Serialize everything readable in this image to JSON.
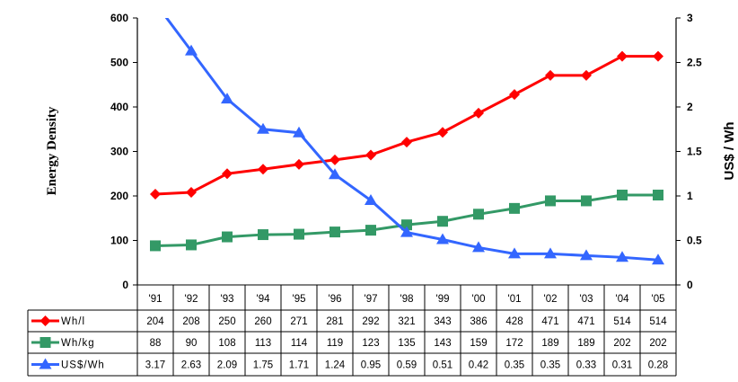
{
  "chart_data": {
    "type": "line",
    "title": "",
    "xlabel": "",
    "ylabel": "Energy Density",
    "y2label": "US$ / Wh",
    "ylim": [
      0,
      600
    ],
    "y2lim": [
      0,
      3
    ],
    "yticks": [
      0,
      100,
      200,
      300,
      400,
      500,
      600
    ],
    "y2ticks": [
      "0",
      "0.5",
      "1",
      "1.5",
      "2",
      "2.5",
      "3"
    ],
    "categories": [
      "'91",
      "'92",
      "'93",
      "'94",
      "'95",
      "'96",
      "'97",
      "'98",
      "'99",
      "'00",
      "'01",
      "'02",
      "'03",
      "'04",
      "'05"
    ],
    "grid": false,
    "legend": "data table below plot",
    "series": [
      {
        "name": "Wh/l",
        "axis": "left",
        "color": "#ff0000",
        "marker": "diamond",
        "values": [
          204,
          208,
          250,
          260,
          271,
          281,
          292,
          321,
          343,
          386,
          428,
          471,
          471,
          514,
          514
        ],
        "labels": [
          "204",
          "208",
          "250",
          "260",
          "271",
          "281",
          "292",
          "321",
          "343",
          "386",
          "428",
          "471",
          "471",
          "514",
          "514"
        ]
      },
      {
        "name": "Wh/kg",
        "axis": "left",
        "color": "#339966",
        "marker": "square",
        "values": [
          88,
          90,
          108,
          113,
          114,
          119,
          123,
          135,
          143,
          159,
          172,
          189,
          189,
          202,
          202
        ],
        "labels": [
          "88",
          "90",
          "108",
          "113",
          "114",
          "119",
          "123",
          "135",
          "143",
          "159",
          "172",
          "189",
          "189",
          "202",
          "202"
        ]
      },
      {
        "name": "US$/Wh",
        "axis": "right",
        "color": "#3366ff",
        "marker": "triangle",
        "values": [
          3.17,
          2.63,
          2.09,
          1.75,
          1.71,
          1.24,
          0.95,
          0.59,
          0.51,
          0.42,
          0.35,
          0.35,
          0.33,
          0.31,
          0.28
        ],
        "labels": [
          "3.17",
          "2.63",
          "2.09",
          "1.75",
          "1.71",
          "1.24",
          "0.95",
          "0.59",
          "0.51",
          "0.42",
          "0.35",
          "0.35",
          "0.33",
          "0.31",
          "0.28"
        ]
      }
    ]
  }
}
